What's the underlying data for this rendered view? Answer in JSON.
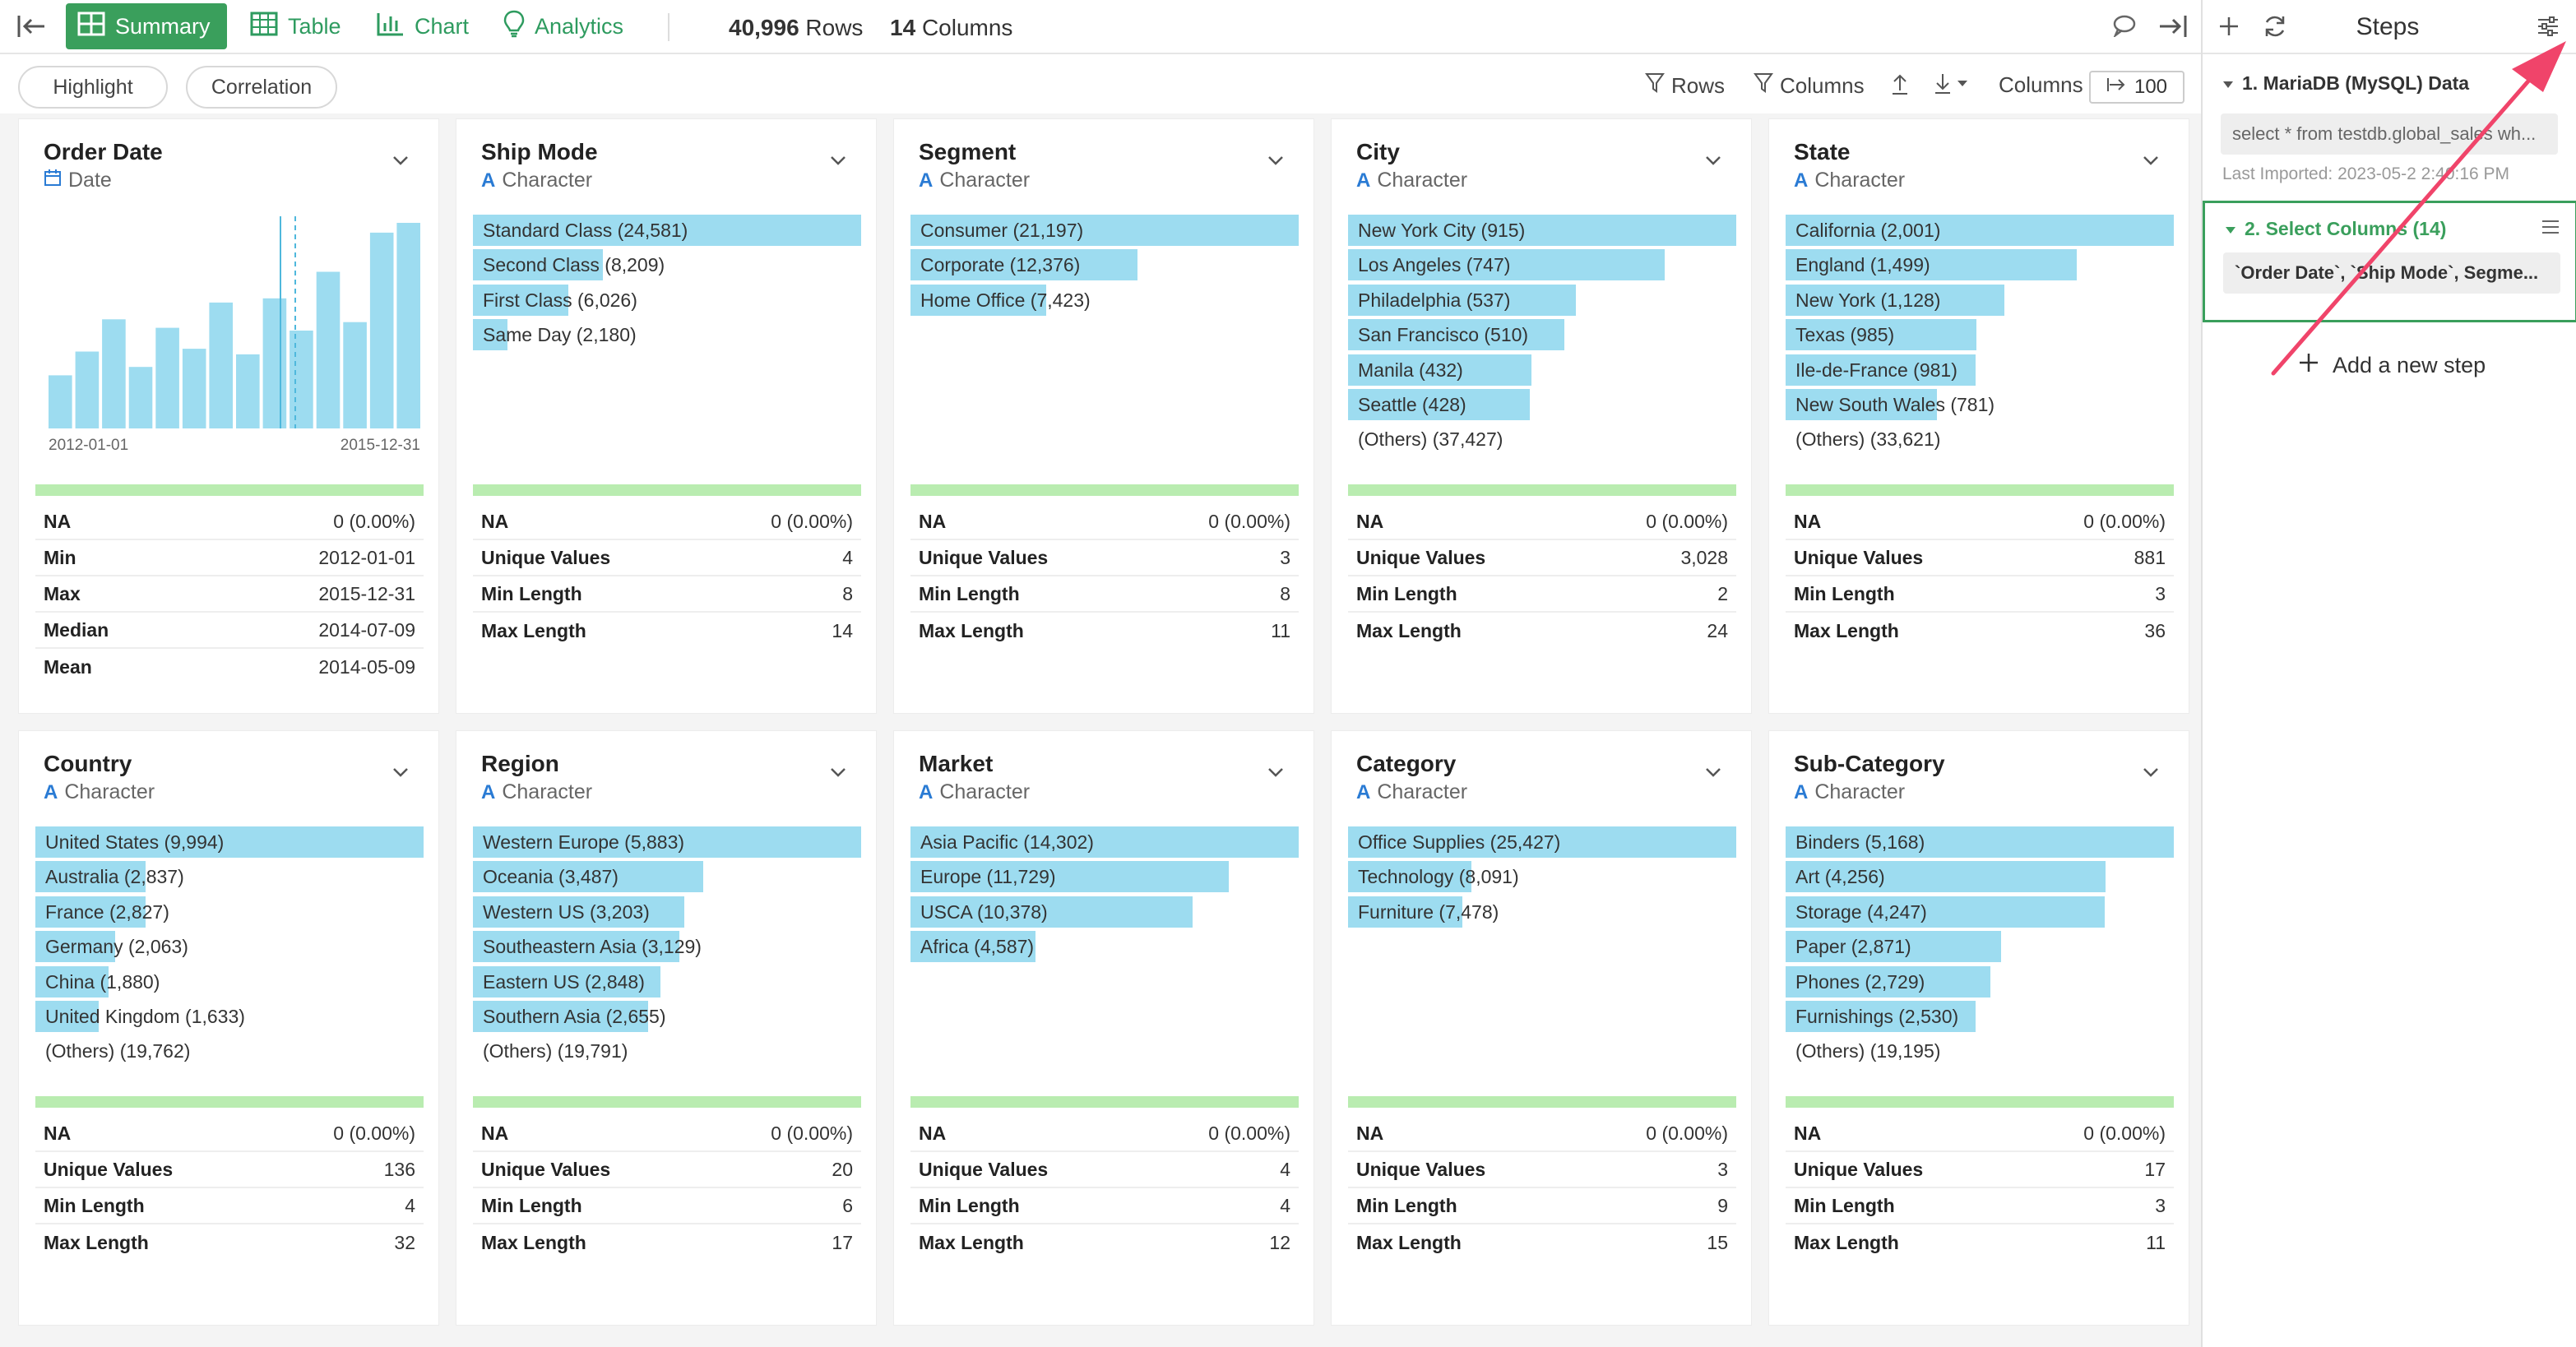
{
  "toolbar": {
    "tabs": [
      {
        "label": "Summary",
        "icon": "summary-grid-icon"
      },
      {
        "label": "Table",
        "icon": "table-icon"
      },
      {
        "label": "Chart",
        "icon": "bar-chart-icon"
      },
      {
        "label": "Analytics",
        "icon": "lightbulb-icon"
      }
    ],
    "rows_count": "40,996",
    "rows_label": "Rows",
    "cols_count": "14",
    "cols_label": "Columns"
  },
  "subtoolbar": {
    "highlight": "Highlight",
    "correlation": "Correlation",
    "rows_filter": "Rows",
    "cols_filter": "Columns",
    "columns_label": "Columns",
    "columns_value": "100"
  },
  "colors": {
    "accent": "#3a9f5c",
    "bar": "#9ddcf0",
    "quality": "#b9ecb0",
    "arrow": "#f0446a"
  },
  "columns": [
    {
      "name": "Order Date",
      "type": "Date",
      "hist": {
        "values": [
          38,
          55,
          78,
          44,
          72,
          57,
          90,
          53,
          93,
          70,
          112,
          76,
          140,
          147
        ],
        "start": "2012-01-01",
        "end": "2015-12-31"
      },
      "stats": [
        [
          "NA",
          "0 (0.00%)"
        ],
        [
          "Min",
          "2012-01-01"
        ],
        [
          "Max",
          "2015-12-31"
        ],
        [
          "Median",
          "2014-07-09"
        ],
        [
          "Mean",
          "2014-05-09"
        ]
      ]
    },
    {
      "name": "Ship Mode",
      "type": "Character",
      "bars": [
        [
          "Standard Class (24,581)",
          1.0
        ],
        [
          "Second Class (8,209)",
          0.334
        ],
        [
          "First Class (6,026)",
          0.245
        ],
        [
          "Same Day (2,180)",
          0.089
        ]
      ],
      "stats": [
        [
          "NA",
          "0 (0.00%)"
        ],
        [
          "Unique Values",
          "4"
        ],
        [
          "Min Length",
          "8"
        ],
        [
          "Max Length",
          "14"
        ]
      ]
    },
    {
      "name": "Segment",
      "type": "Character",
      "bars": [
        [
          "Consumer (21,197)",
          1.0
        ],
        [
          "Corporate (12,376)",
          0.584
        ],
        [
          "Home Office (7,423)",
          0.35
        ]
      ],
      "stats": [
        [
          "NA",
          "0 (0.00%)"
        ],
        [
          "Unique Values",
          "3"
        ],
        [
          "Min Length",
          "8"
        ],
        [
          "Max Length",
          "11"
        ]
      ]
    },
    {
      "name": "City",
      "type": "Character",
      "bars": [
        [
          "New York City (915)",
          1.0
        ],
        [
          "Los Angeles (747)",
          0.816
        ],
        [
          "Philadelphia (537)",
          0.587
        ],
        [
          "San Francisco (510)",
          0.557
        ],
        [
          "Manila (432)",
          0.472
        ],
        [
          "Seattle (428)",
          0.468
        ],
        [
          "(Others) (37,427)",
          0
        ]
      ],
      "stats": [
        [
          "NA",
          "0 (0.00%)"
        ],
        [
          "Unique Values",
          "3,028"
        ],
        [
          "Min Length",
          "2"
        ],
        [
          "Max Length",
          "24"
        ]
      ]
    },
    {
      "name": "State",
      "type": "Character",
      "bars": [
        [
          "California (2,001)",
          1.0
        ],
        [
          "England (1,499)",
          0.749
        ],
        [
          "New York (1,128)",
          0.564
        ],
        [
          "Texas (985)",
          0.492
        ],
        [
          "Ile-de-France (981)",
          0.49
        ],
        [
          "New South Wales (781)",
          0.39
        ],
        [
          "(Others) (33,621)",
          0
        ]
      ],
      "stats": [
        [
          "NA",
          "0 (0.00%)"
        ],
        [
          "Unique Values",
          "881"
        ],
        [
          "Min Length",
          "3"
        ],
        [
          "Max Length",
          "36"
        ]
      ]
    },
    {
      "name": "Country",
      "type": "Character",
      "bars": [
        [
          "United States (9,994)",
          1.0
        ],
        [
          "Australia (2,837)",
          0.284
        ],
        [
          "France (2,827)",
          0.283
        ],
        [
          "Germany (2,063)",
          0.206
        ],
        [
          "China (1,880)",
          0.188
        ],
        [
          "United Kingdom (1,633)",
          0.163
        ],
        [
          "(Others) (19,762)",
          0
        ]
      ],
      "stats": [
        [
          "NA",
          "0 (0.00%)"
        ],
        [
          "Unique Values",
          "136"
        ],
        [
          "Min Length",
          "4"
        ],
        [
          "Max Length",
          "32"
        ]
      ]
    },
    {
      "name": "Region",
      "type": "Character",
      "bars": [
        [
          "Western Europe (5,883)",
          1.0
        ],
        [
          "Oceania (3,487)",
          0.593
        ],
        [
          "Western US (3,203)",
          0.544
        ],
        [
          "Southeastern Asia (3,129)",
          0.532
        ],
        [
          "Eastern US (2,848)",
          0.484
        ],
        [
          "Southern Asia (2,655)",
          0.451
        ],
        [
          "(Others) (19,791)",
          0
        ]
      ],
      "stats": [
        [
          "NA",
          "0 (0.00%)"
        ],
        [
          "Unique Values",
          "20"
        ],
        [
          "Min Length",
          "6"
        ],
        [
          "Max Length",
          "17"
        ]
      ]
    },
    {
      "name": "Market",
      "type": "Character",
      "bars": [
        [
          "Asia Pacific (14,302)",
          1.0
        ],
        [
          "Europe (11,729)",
          0.82
        ],
        [
          "USCA (10,378)",
          0.726
        ],
        [
          "Africa (4,587)",
          0.321
        ]
      ],
      "stats": [
        [
          "NA",
          "0 (0.00%)"
        ],
        [
          "Unique Values",
          "4"
        ],
        [
          "Min Length",
          "4"
        ],
        [
          "Max Length",
          "12"
        ]
      ]
    },
    {
      "name": "Category",
      "type": "Character",
      "bars": [
        [
          "Office Supplies (25,427)",
          1.0
        ],
        [
          "Technology (8,091)",
          0.318
        ],
        [
          "Furniture (7,478)",
          0.294
        ]
      ],
      "stats": [
        [
          "NA",
          "0 (0.00%)"
        ],
        [
          "Unique Values",
          "3"
        ],
        [
          "Min Length",
          "9"
        ],
        [
          "Max Length",
          "15"
        ]
      ]
    },
    {
      "name": "Sub-Category",
      "type": "Character",
      "bars": [
        [
          "Binders (5,168)",
          1.0
        ],
        [
          "Art (4,256)",
          0.824
        ],
        [
          "Storage (4,247)",
          0.822
        ],
        [
          "Paper (2,871)",
          0.556
        ],
        [
          "Phones (2,729)",
          0.528
        ],
        [
          "Furnishings (2,530)",
          0.49
        ],
        [
          "(Others) (19,195)",
          0
        ]
      ],
      "stats": [
        [
          "NA",
          "0 (0.00%)"
        ],
        [
          "Unique Values",
          "17"
        ],
        [
          "Min Length",
          "3"
        ],
        [
          "Max Length",
          "11"
        ]
      ]
    }
  ],
  "steps_panel": {
    "title": "Steps",
    "steps": [
      {
        "title": "1. MariaDB (MySQL) Data",
        "code": "select * from testdb.global_sales wh...",
        "meta": "Last Imported: 2023-05-2 2:40:16 PM"
      },
      {
        "title": "2. Select Columns (14)",
        "code": "`Order Date`, `Ship Mode`, Segme..."
      }
    ],
    "add_step": "Add a new step"
  }
}
